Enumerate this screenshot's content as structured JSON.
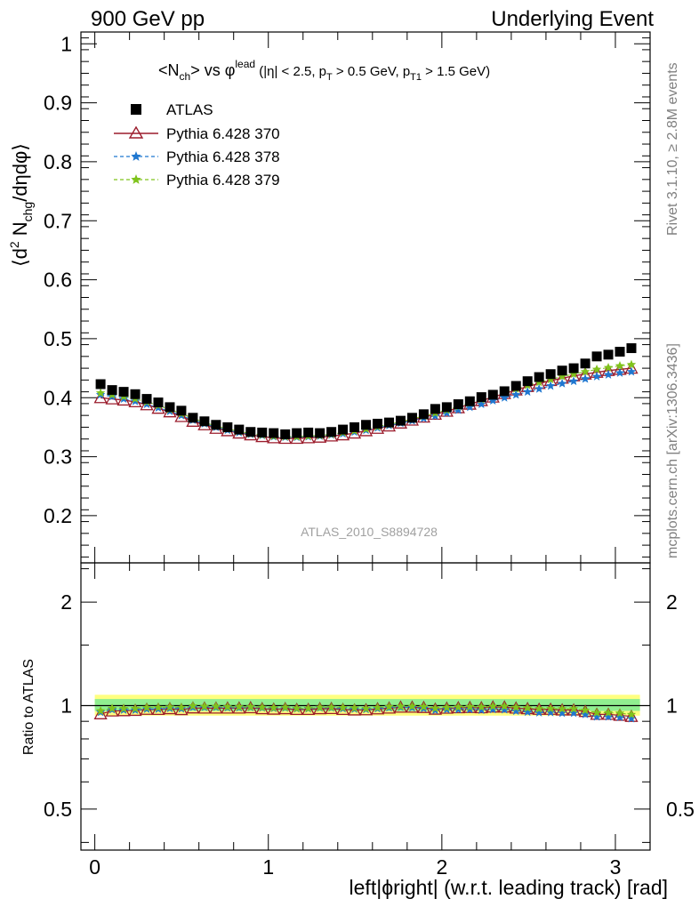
{
  "header": {
    "left": "900 GeV pp",
    "right": "Underlying Event"
  },
  "side_labels": {
    "rivet": "Rivet 3.1.10, ≥ 2.8M events",
    "mcplots": "mcplots.cern.ch [arXiv:1306.3436]"
  },
  "analysis_id": "ATLAS_2010_S8894728",
  "chart_data": [
    {
      "type": "scatter",
      "title": "<N_ch> vs φ^lead (|η| < 2.5, p_T > 0.5 GeV, p_T1 > 1.5 GeV)",
      "title_parts": {
        "a": "<N",
        "a_sub": "ch",
        "b": "> vs φ",
        "b_sup": "lead",
        "c": " (|η| < 2.5, p",
        "c_sub": "T",
        "d": " > 0.5 GeV, p",
        "d_sub": "T1",
        "e": " > 1.5 GeV)"
      },
      "ylabel": "⟨d² N_chg/dηdφ⟩",
      "ylabel_parts": {
        "a": "⟨d",
        "a_sup": "2",
        "b": " N",
        "b_sub": "chg",
        "c": "/dηdφ⟩"
      },
      "xlim": [
        -0.08,
        3.2
      ],
      "ylim": [
        0.12,
        1.02
      ],
      "y_ticks": [
        0.2,
        0.3,
        0.4,
        0.5,
        0.6,
        0.7,
        0.8,
        0.9,
        1
      ],
      "y_tick_labels": [
        "0.2",
        "0.3",
        "0.4",
        "0.5",
        "0.6",
        "0.7",
        "0.8",
        "0.9",
        "1"
      ],
      "legend_position": "top-left",
      "grid": false,
      "x": [
        0.0333,
        0.0998,
        0.1663,
        0.2328,
        0.2993,
        0.3658,
        0.4323,
        0.4988,
        0.5653,
        0.6318,
        0.6983,
        0.7648,
        0.8313,
        0.8978,
        0.9643,
        1.0308,
        1.0973,
        1.1638,
        1.2303,
        1.2968,
        1.3633,
        1.4298,
        1.4963,
        1.5628,
        1.6293,
        1.6958,
        1.7623,
        1.8288,
        1.8953,
        1.9618,
        2.0283,
        2.0948,
        2.1613,
        2.2278,
        2.2943,
        2.3608,
        2.4273,
        2.4938,
        2.5603,
        2.6268,
        2.6933,
        2.7598,
        2.8263,
        2.8928,
        2.9593,
        3.0258,
        3.0923
      ],
      "series": [
        {
          "name": "ATLAS",
          "marker": "square",
          "color": "#000000",
          "values": [
            0.423,
            0.413,
            0.41,
            0.406,
            0.398,
            0.392,
            0.384,
            0.378,
            0.366,
            0.36,
            0.354,
            0.35,
            0.346,
            0.342,
            0.341,
            0.34,
            0.338,
            0.34,
            0.341,
            0.34,
            0.342,
            0.346,
            0.35,
            0.354,
            0.356,
            0.358,
            0.361,
            0.366,
            0.372,
            0.381,
            0.384,
            0.389,
            0.394,
            0.401,
            0.405,
            0.411,
            0.42,
            0.428,
            0.435,
            0.44,
            0.446,
            0.45,
            0.458,
            0.47,
            0.473,
            0.478,
            0.484
          ]
        },
        {
          "name": "Pythia 6.428 370",
          "marker": "open-triangle",
          "line": "solid",
          "color": "#9b1c2c",
          "values": [
            0.4,
            0.398,
            0.396,
            0.393,
            0.388,
            0.382,
            0.376,
            0.368,
            0.36,
            0.354,
            0.348,
            0.344,
            0.34,
            0.337,
            0.334,
            0.332,
            0.331,
            0.331,
            0.332,
            0.333,
            0.335,
            0.337,
            0.34,
            0.344,
            0.348,
            0.352,
            0.357,
            0.362,
            0.367,
            0.372,
            0.377,
            0.383,
            0.389,
            0.395,
            0.401,
            0.407,
            0.413,
            0.419,
            0.424,
            0.429,
            0.433,
            0.437,
            0.44,
            0.443,
            0.446,
            0.448,
            0.45
          ]
        },
        {
          "name": "Pythia 6.428 378",
          "marker": "star",
          "line": "dashed",
          "color": "#1f77d0",
          "values": [
            0.405,
            0.402,
            0.398,
            0.394,
            0.389,
            0.383,
            0.377,
            0.37,
            0.362,
            0.356,
            0.35,
            0.345,
            0.341,
            0.338,
            0.336,
            0.334,
            0.333,
            0.333,
            0.334,
            0.335,
            0.337,
            0.339,
            0.342,
            0.345,
            0.349,
            0.353,
            0.357,
            0.361,
            0.365,
            0.369,
            0.374,
            0.379,
            0.384,
            0.389,
            0.395,
            0.4,
            0.405,
            0.41,
            0.415,
            0.42,
            0.424,
            0.428,
            0.432,
            0.436,
            0.439,
            0.442,
            0.444
          ]
        },
        {
          "name": "Pythia 6.428 379",
          "marker": "star",
          "line": "dashed",
          "color": "#7fc31c",
          "values": [
            0.408,
            0.405,
            0.402,
            0.398,
            0.393,
            0.387,
            0.38,
            0.373,
            0.365,
            0.358,
            0.352,
            0.347,
            0.343,
            0.339,
            0.337,
            0.335,
            0.334,
            0.334,
            0.335,
            0.336,
            0.338,
            0.341,
            0.344,
            0.347,
            0.351,
            0.355,
            0.359,
            0.364,
            0.369,
            0.374,
            0.379,
            0.385,
            0.391,
            0.397,
            0.403,
            0.409,
            0.415,
            0.421,
            0.426,
            0.431,
            0.436,
            0.44,
            0.444,
            0.448,
            0.451,
            0.454,
            0.456
          ]
        }
      ]
    },
    {
      "type": "scatter",
      "ylabel": "Ratio to ATLAS",
      "xlabel": "left|ϕright| (w.r.t. leading track) [rad]",
      "xlim": [
        -0.08,
        3.2
      ],
      "x_ticks": [
        0,
        1,
        2,
        3
      ],
      "x_tick_labels": [
        "0",
        "1",
        "2",
        "3"
      ],
      "ylim": [
        0.38,
        2.6
      ],
      "y_scale": "log",
      "y_ticks": [
        0.5,
        1,
        2
      ],
      "y_tick_labels": [
        "0.5",
        "1",
        "2"
      ],
      "reference_line": 1,
      "bands": [
        {
          "name": "total",
          "color": "#ffff80",
          "lo": 0.935,
          "hi": 1.075
        },
        {
          "name": "statistical",
          "color": "#90ee90",
          "lo": 0.965,
          "hi": 1.045
        }
      ],
      "series": [
        {
          "name": "Pythia 6.428 370",
          "marker": "open-triangle",
          "color": "#9b1c2c",
          "values": [
            0.946,
            0.964,
            0.966,
            0.968,
            0.975,
            0.974,
            0.979,
            0.973,
            0.984,
            0.983,
            0.983,
            0.983,
            0.983,
            0.985,
            0.979,
            0.976,
            0.979,
            0.974,
            0.974,
            0.979,
            0.98,
            0.974,
            0.971,
            0.972,
            0.978,
            0.983,
            0.989,
            0.989,
            0.987,
            0.976,
            0.982,
            0.985,
            0.987,
            0.985,
            0.99,
            0.99,
            0.983,
            0.979,
            0.975,
            0.975,
            0.971,
            0.971,
            0.961,
            0.943,
            0.943,
            0.937,
            0.93
          ]
        },
        {
          "name": "Pythia 6.428 378",
          "marker": "star",
          "color": "#1f77d0",
          "values": [
            0.957,
            0.973,
            0.971,
            0.97,
            0.977,
            0.977,
            0.982,
            0.979,
            0.989,
            0.989,
            0.989,
            0.986,
            0.986,
            0.988,
            0.985,
            0.982,
            0.985,
            0.979,
            0.979,
            0.985,
            0.985,
            0.98,
            0.977,
            0.975,
            0.98,
            0.986,
            0.989,
            0.986,
            0.981,
            0.969,
            0.974,
            0.974,
            0.975,
            0.97,
            0.975,
            0.973,
            0.964,
            0.958,
            0.954,
            0.955,
            0.951,
            0.951,
            0.943,
            0.928,
            0.928,
            0.925,
            0.917
          ]
        },
        {
          "name": "Pythia 6.428 379",
          "marker": "star",
          "color": "#7fc31c",
          "values": [
            0.965,
            0.981,
            0.98,
            0.98,
            0.987,
            0.987,
            0.99,
            0.987,
            0.997,
            0.994,
            0.994,
            0.991,
            0.991,
            0.991,
            0.988,
            0.985,
            0.988,
            0.982,
            0.982,
            0.988,
            0.988,
            0.986,
            0.983,
            0.98,
            0.986,
            0.992,
            0.994,
            0.995,
            0.992,
            0.982,
            0.987,
            0.99,
            0.992,
            0.99,
            0.995,
            0.995,
            0.988,
            0.984,
            0.979,
            0.98,
            0.978,
            0.978,
            0.969,
            0.953,
            0.953,
            0.95,
            0.942
          ]
        }
      ]
    }
  ]
}
